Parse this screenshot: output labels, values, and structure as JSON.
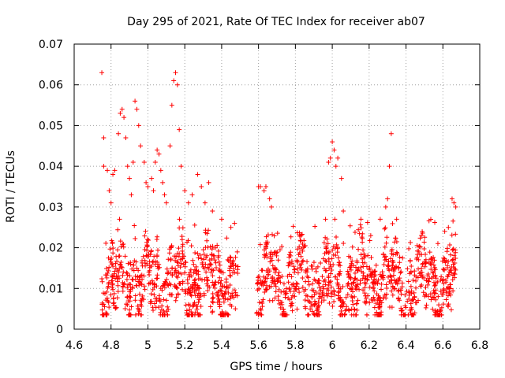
{
  "chart_data": {
    "type": "scatter",
    "title": "Day 295 of 2021, Rate Of TEC Index for receiver ab07",
    "xlabel": "GPS time / hours",
    "ylabel": "ROTI / TECUs",
    "xlim": [
      4.6,
      6.8
    ],
    "ylim": [
      0,
      0.07
    ],
    "xticks": [
      "4.6",
      "4.8",
      "5",
      "5.2",
      "5.4",
      "5.6",
      "5.8",
      "6",
      "6.2",
      "6.4",
      "6.6",
      "6.8"
    ],
    "yticks": [
      "0",
      "0.01",
      "0.02",
      "0.03",
      "0.04",
      "0.05",
      "0.06",
      "0.07"
    ],
    "grid": true,
    "marker": "plus",
    "series_color": "#ff0000",
    "series": [
      {
        "segments": [
          {
            "x_range": [
              4.75,
              5.49
            ],
            "baseline": 0.011,
            "spread": 0.009
          },
          {
            "x_range": [
              5.59,
              6.67
            ],
            "baseline": 0.011,
            "spread": 0.009
          }
        ],
        "points": [
          [
            4.75,
            0.063
          ],
          [
            4.76,
            0.047
          ],
          [
            4.76,
            0.04
          ],
          [
            4.78,
            0.039
          ],
          [
            4.79,
            0.034
          ],
          [
            4.8,
            0.031
          ],
          [
            4.81,
            0.038
          ],
          [
            4.82,
            0.039
          ],
          [
            4.84,
            0.048
          ],
          [
            4.85,
            0.053
          ],
          [
            4.86,
            0.054
          ],
          [
            4.87,
            0.052
          ],
          [
            4.88,
            0.047
          ],
          [
            4.89,
            0.04
          ],
          [
            4.9,
            0.037
          ],
          [
            4.91,
            0.033
          ],
          [
            4.92,
            0.041
          ],
          [
            4.93,
            0.056
          ],
          [
            4.94,
            0.054
          ],
          [
            4.95,
            0.05
          ],
          [
            4.96,
            0.045
          ],
          [
            4.98,
            0.041
          ],
          [
            4.99,
            0.036
          ],
          [
            5.0,
            0.035
          ],
          [
            5.02,
            0.037
          ],
          [
            5.03,
            0.034
          ],
          [
            5.04,
            0.041
          ],
          [
            5.05,
            0.044
          ],
          [
            5.06,
            0.043
          ],
          [
            5.07,
            0.039
          ],
          [
            5.08,
            0.036
          ],
          [
            5.09,
            0.033
          ],
          [
            5.1,
            0.031
          ],
          [
            5.12,
            0.045
          ],
          [
            5.13,
            0.055
          ],
          [
            5.14,
            0.061
          ],
          [
            5.15,
            0.063
          ],
          [
            5.16,
            0.06
          ],
          [
            5.17,
            0.049
          ],
          [
            5.18,
            0.04
          ],
          [
            5.2,
            0.034
          ],
          [
            5.22,
            0.031
          ],
          [
            5.24,
            0.033
          ],
          [
            5.27,
            0.038
          ],
          [
            5.29,
            0.035
          ],
          [
            5.31,
            0.031
          ],
          [
            5.33,
            0.036
          ],
          [
            5.35,
            0.029
          ],
          [
            5.4,
            0.027
          ],
          [
            5.45,
            0.025
          ],
          [
            5.47,
            0.026
          ],
          [
            5.6,
            0.035
          ],
          [
            5.61,
            0.035
          ],
          [
            5.63,
            0.034
          ],
          [
            5.64,
            0.035
          ],
          [
            5.66,
            0.032
          ],
          [
            5.67,
            0.03
          ],
          [
            5.6,
            0.004
          ],
          [
            5.61,
            0.005
          ],
          [
            5.98,
            0.041
          ],
          [
            5.99,
            0.042
          ],
          [
            6.0,
            0.046
          ],
          [
            6.01,
            0.044
          ],
          [
            6.02,
            0.04
          ],
          [
            6.03,
            0.042
          ],
          [
            6.05,
            0.037
          ],
          [
            6.06,
            0.029
          ],
          [
            6.26,
            0.027
          ],
          [
            6.29,
            0.03
          ],
          [
            6.3,
            0.032
          ],
          [
            6.32,
            0.048
          ],
          [
            6.31,
            0.04
          ],
          [
            6.61,
            0.024
          ],
          [
            6.63,
            0.025
          ],
          [
            6.65,
            0.032
          ],
          [
            6.66,
            0.031
          ],
          [
            6.67,
            0.03
          ]
        ]
      }
    ]
  }
}
